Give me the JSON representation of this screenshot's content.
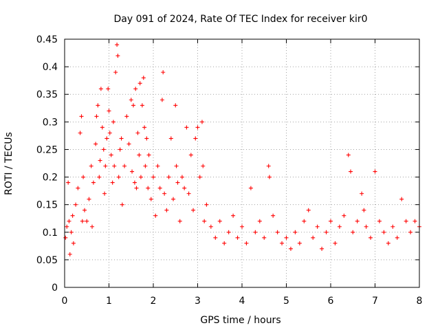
{
  "chart_data": {
    "type": "scatter",
    "title": "Day 091 of 2024, Rate Of TEC Index for receiver kir0",
    "xlabel": "GPS time / hours",
    "ylabel": "ROTI / TECUs",
    "xlim": [
      0,
      8
    ],
    "ylim": [
      0,
      0.45
    ],
    "x_ticks": [
      "0",
      "1",
      "2",
      "3",
      "4",
      "5",
      "6",
      "7",
      "8"
    ],
    "y_ticks": [
      "0",
      "0.05",
      "0.1",
      "0.15",
      "0.2",
      "0.25",
      "0.3",
      "0.35",
      "0.4",
      "0.45"
    ],
    "grid": true,
    "marker": "+",
    "series": [
      {
        "name": "ROTI",
        "color": "#ff0000",
        "x": [
          0.02,
          0.05,
          0.08,
          0.1,
          0.12,
          0.15,
          0.18,
          0.2,
          0.25,
          0.3,
          0.35,
          0.38,
          0.4,
          0.42,
          0.45,
          0.5,
          0.55,
          0.6,
          0.62,
          0.65,
          0.7,
          0.72,
          0.75,
          0.78,
          0.8,
          0.82,
          0.85,
          0.88,
          0.9,
          0.92,
          0.95,
          0.98,
          1.0,
          1.02,
          1.05,
          1.08,
          1.1,
          1.12,
          1.15,
          1.18,
          1.2,
          1.22,
          1.25,
          1.28,
          1.3,
          1.35,
          1.4,
          1.45,
          1.5,
          1.52,
          1.55,
          1.58,
          1.6,
          1.62,
          1.65,
          1.68,
          1.7,
          1.72,
          1.75,
          1.78,
          1.8,
          1.82,
          1.85,
          1.88,
          1.9,
          1.95,
          2.0,
          2.05,
          2.1,
          2.15,
          2.2,
          2.22,
          2.25,
          2.3,
          2.35,
          2.4,
          2.45,
          2.5,
          2.52,
          2.55,
          2.6,
          2.65,
          2.7,
          2.75,
          2.8,
          2.85,
          2.9,
          2.95,
          3.0,
          3.05,
          3.1,
          3.12,
          3.15,
          3.2,
          3.3,
          3.4,
          3.5,
          3.6,
          3.7,
          3.8,
          3.9,
          4.0,
          4.1,
          4.2,
          4.3,
          4.4,
          4.5,
          4.6,
          4.62,
          4.7,
          4.8,
          4.9,
          5.0,
          5.1,
          5.2,
          5.3,
          5.4,
          5.5,
          5.6,
          5.7,
          5.8,
          5.9,
          6.0,
          6.1,
          6.2,
          6.3,
          6.4,
          6.45,
          6.5,
          6.6,
          6.7,
          6.75,
          6.8,
          6.9,
          7.0,
          7.1,
          7.2,
          7.3,
          7.4,
          7.5,
          7.6,
          7.7,
          7.8,
          7.9,
          8.0
        ],
        "y": [
          0.09,
          0.11,
          0.19,
          0.12,
          0.06,
          0.1,
          0.13,
          0.08,
          0.15,
          0.18,
          0.28,
          0.31,
          0.12,
          0.2,
          0.14,
          0.12,
          0.16,
          0.22,
          0.11,
          0.19,
          0.26,
          0.31,
          0.33,
          0.2,
          0.23,
          0.36,
          0.29,
          0.25,
          0.17,
          0.22,
          0.27,
          0.36,
          0.32,
          0.28,
          0.24,
          0.19,
          0.3,
          0.22,
          0.39,
          0.44,
          0.42,
          0.2,
          0.25,
          0.27,
          0.15,
          0.22,
          0.31,
          0.26,
          0.34,
          0.21,
          0.33,
          0.19,
          0.36,
          0.18,
          0.28,
          0.24,
          0.37,
          0.2,
          0.33,
          0.38,
          0.29,
          0.22,
          0.27,
          0.18,
          0.24,
          0.16,
          0.2,
          0.13,
          0.22,
          0.18,
          0.34,
          0.39,
          0.17,
          0.14,
          0.2,
          0.27,
          0.16,
          0.33,
          0.22,
          0.19,
          0.12,
          0.2,
          0.18,
          0.29,
          0.17,
          0.24,
          0.14,
          0.27,
          0.29,
          0.2,
          0.3,
          0.22,
          0.12,
          0.15,
          0.11,
          0.09,
          0.12,
          0.08,
          0.1,
          0.13,
          0.09,
          0.11,
          0.08,
          0.18,
          0.1,
          0.12,
          0.09,
          0.22,
          0.2,
          0.13,
          0.1,
          0.08,
          0.09,
          0.07,
          0.1,
          0.08,
          0.12,
          0.14,
          0.09,
          0.11,
          0.07,
          0.1,
          0.12,
          0.08,
          0.11,
          0.13,
          0.24,
          0.21,
          0.1,
          0.12,
          0.17,
          0.14,
          0.11,
          0.09,
          0.21,
          0.12,
          0.1,
          0.08,
          0.11,
          0.09,
          0.16,
          0.12,
          0.1,
          0.12,
          0.11
        ]
      }
    ]
  }
}
